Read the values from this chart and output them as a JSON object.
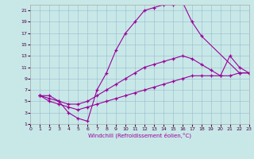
{
  "xlabel": "Windchill (Refroidissement éolien,°C)",
  "bg_color": "#c8e8e8",
  "line_color": "#990099",
  "grid_color": "#99bbcc",
  "xlim": [
    0,
    23
  ],
  "ylim": [
    1,
    22
  ],
  "xticks": [
    0,
    1,
    2,
    3,
    4,
    5,
    6,
    7,
    8,
    9,
    10,
    11,
    12,
    13,
    14,
    15,
    16,
    17,
    18,
    19,
    20,
    21,
    22,
    23
  ],
  "yticks": [
    1,
    3,
    5,
    7,
    9,
    11,
    13,
    15,
    17,
    19,
    21
  ],
  "series": [
    {
      "x": [
        1,
        2,
        3,
        4,
        5,
        6,
        7,
        8,
        9,
        10,
        11,
        12,
        13,
        14,
        15,
        16,
        17,
        18,
        22,
        23
      ],
      "y": [
        6,
        6,
        5,
        3,
        2,
        1.5,
        7,
        10,
        14,
        17,
        19,
        21,
        21.5,
        22,
        22,
        22.5,
        19,
        16.5,
        10,
        10
      ]
    },
    {
      "x": [
        1,
        2,
        3,
        4,
        5,
        6,
        7,
        8,
        9,
        10,
        11,
        12,
        13,
        14,
        15,
        16,
        17,
        18,
        19,
        20,
        21,
        22,
        23
      ],
      "y": [
        6,
        5.5,
        5,
        4.5,
        4.5,
        5,
        6,
        7,
        8,
        9,
        10,
        11,
        11.5,
        12,
        12.5,
        13,
        12.5,
        11.5,
        10.5,
        9.5,
        13,
        11,
        10
      ]
    },
    {
      "x": [
        1,
        2,
        3,
        4,
        5,
        6,
        7,
        8,
        9,
        10,
        11,
        12,
        13,
        14,
        15,
        16,
        17,
        18,
        19,
        20,
        21,
        22,
        23
      ],
      "y": [
        6,
        5,
        4.5,
        4,
        3.5,
        4,
        4.5,
        5,
        5.5,
        6,
        6.5,
        7,
        7.5,
        8,
        8.5,
        9,
        9.5,
        9.5,
        9.5,
        9.5,
        9.5,
        10,
        10
      ]
    }
  ]
}
